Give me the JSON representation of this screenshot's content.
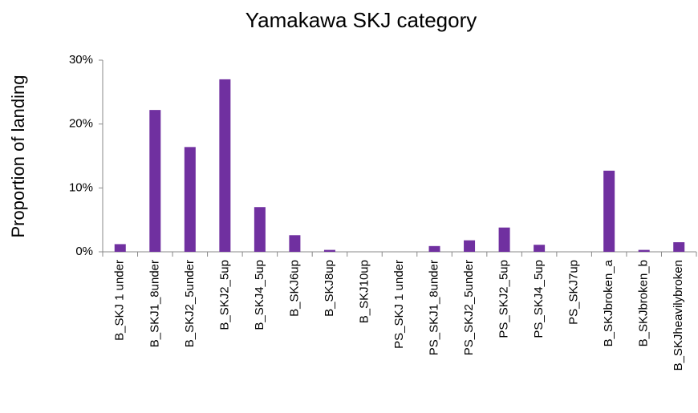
{
  "chart_data": {
    "type": "bar",
    "title": "Yamakawa SKJ category",
    "y_label": "Proportion of landing",
    "categories": [
      "B_SKJ 1 under",
      "B_SKJ1_8under",
      "B_SKJ2_5under",
      "B_SKJ2_5up",
      "B_SKJ4_5up",
      "B_SKJ6up",
      "B_SKJ8up",
      "B_SKJ10up",
      "PS_SKJ 1 under",
      "PS_SKJ1_8under",
      "PS_SKJ2_5under",
      "PS_SKJ2_5up",
      "PS_SKJ4_5up",
      "PS_SKJ7up",
      "B_SKJbroken_a",
      "B_SKJbroken_b",
      "B_SKJheavilybroken"
    ],
    "values": [
      1.2,
      22.2,
      16.4,
      27.0,
      7.0,
      2.6,
      0.3,
      0,
      0,
      0.9,
      1.8,
      3.8,
      1.1,
      0,
      12.7,
      0.3,
      1.5
    ],
    "color": "#7030a0",
    "ylim": [
      0,
      30
    ],
    "yticks": [
      {
        "value": 0,
        "label": "0%"
      },
      {
        "value": 10,
        "label": "10%"
      },
      {
        "value": 20,
        "label": "20%"
      },
      {
        "value": 30,
        "label": "30%"
      }
    ],
    "grid": false
  }
}
